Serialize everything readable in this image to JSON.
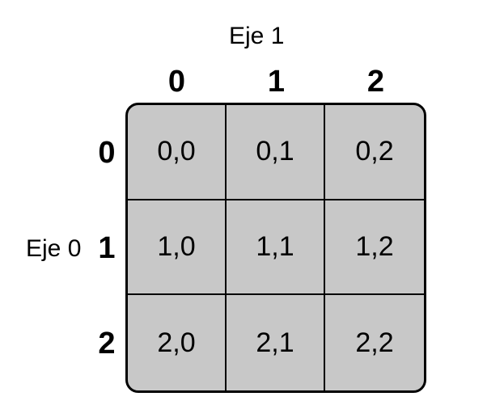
{
  "axis1_label": "Eje 1",
  "axis0_label": "Eje 0",
  "column_indices": [
    "0",
    "1",
    "2"
  ],
  "row_indices": [
    "0",
    "1",
    "2"
  ],
  "cells": [
    [
      "0,0",
      "0,1",
      "0,2"
    ],
    [
      "1,0",
      "1,1",
      "1,2"
    ],
    [
      "2,0",
      "2,1",
      "2,2"
    ]
  ],
  "colors": {
    "cell_fill": "#c8c8c8",
    "border": "#000000",
    "background": "#ffffff"
  }
}
